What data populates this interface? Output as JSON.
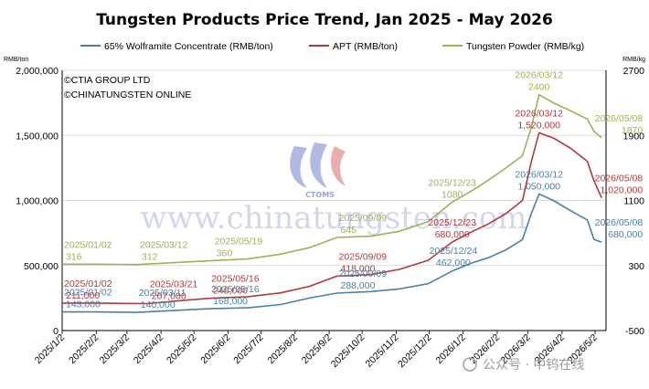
{
  "chart_data": {
    "type": "line",
    "title": "Tungsten Products Price Trend, Jan 2025 - May 2026",
    "left_axis": {
      "unit": "RMB/ton",
      "ylim": [
        0,
        2000000
      ],
      "ticks": [
        "0",
        "500,000",
        "1,000,000",
        "1,500,000",
        "2,000,000"
      ],
      "tick_values": [
        0,
        500000,
        1000000,
        1500000,
        2000000
      ]
    },
    "right_axis": {
      "unit": "RMB/kg",
      "ylim": [
        -500,
        2700
      ],
      "ticks": [
        "-500",
        "300",
        "1100",
        "1900",
        "2700"
      ],
      "tick_values": [
        -500,
        300,
        1100,
        1900,
        2700
      ]
    },
    "x_ticks": [
      "2025/1/2",
      "2025/2/2",
      "2025/3/2",
      "2025/4/2",
      "2025/5/2",
      "2025/6/2",
      "2025/7/2",
      "2025/8/2",
      "2025/9/2",
      "2025/10/2",
      "2025/11/2",
      "2025/12/2",
      "2026/1/2",
      "2026/2/2",
      "2026/3/2",
      "2026/4/2",
      "2026/5/2"
    ],
    "grid": "horizontal",
    "legend_position": "top",
    "series": [
      {
        "name": "65% Wolframite Concentrate (RMB/ton)",
        "color": "#4a7fa8",
        "axis": "left",
        "x": [
          "2025-01-02",
          "2025-02-01",
          "2025-03-11",
          "2025-04-15",
          "2025-05-16",
          "2025-06-20",
          "2025-07-20",
          "2025-08-15",
          "2025-09-09",
          "2025-10-10",
          "2025-11-05",
          "2025-12-01",
          "2025-12-24",
          "2026-01-10",
          "2026-01-25",
          "2026-02-10",
          "2026-02-25",
          "2026-03-05",
          "2026-03-12",
          "2026-03-25",
          "2026-04-10",
          "2026-04-25",
          "2026-05-01",
          "2026-05-08"
        ],
        "y": [
          143000,
          143000,
          140000,
          155000,
          168000,
          175000,
          200000,
          250000,
          288000,
          300000,
          320000,
          360000,
          462000,
          520000,
          560000,
          620000,
          700000,
          900000,
          1050000,
          1000000,
          920000,
          850000,
          700000,
          680000
        ]
      },
      {
        "name": "APT (RMB/ton)",
        "color": "#b03a3a",
        "axis": "left",
        "x": [
          "2025-01-02",
          "2025-02-01",
          "2025-03-21",
          "2025-04-20",
          "2025-05-16",
          "2025-06-20",
          "2025-07-20",
          "2025-08-15",
          "2025-09-09",
          "2025-10-10",
          "2025-11-05",
          "2025-12-01",
          "2025-12-23",
          "2026-01-10",
          "2026-01-25",
          "2026-02-10",
          "2026-02-25",
          "2026-03-05",
          "2026-03-12",
          "2026-03-25",
          "2026-04-10",
          "2026-04-25",
          "2026-05-01",
          "2026-05-08"
        ],
        "y": [
          211000,
          211000,
          207000,
          230000,
          248000,
          260000,
          290000,
          340000,
          418000,
          430000,
          470000,
          540000,
          680000,
          760000,
          820000,
          900000,
          1000000,
          1300000,
          1520000,
          1480000,
          1400000,
          1300000,
          1150000,
          1020000
        ]
      },
      {
        "name": "Tungsten Powder (RMB/kg)",
        "color": "#9bb354",
        "axis": "right",
        "x": [
          "2025-01-02",
          "2025-02-01",
          "2025-03-12",
          "2025-04-20",
          "2025-05-19",
          "2025-06-20",
          "2025-07-20",
          "2025-08-15",
          "2025-09-09",
          "2025-10-10",
          "2025-11-05",
          "2025-12-01",
          "2025-12-23",
          "2026-01-10",
          "2026-01-25",
          "2026-02-10",
          "2026-02-25",
          "2026-03-05",
          "2026-03-12",
          "2026-03-25",
          "2026-04-10",
          "2026-04-25",
          "2026-05-01",
          "2026-05-08"
        ],
        "y": [
          316,
          316,
          312,
          340,
          360,
          380,
          440,
          520,
          645,
          660,
          720,
          840,
          1080,
          1220,
          1350,
          1500,
          1650,
          2000,
          2400,
          2300,
          2200,
          2100,
          1950,
          1870
        ]
      }
    ],
    "annotations": [
      {
        "series": 2,
        "date": "2025-01-02",
        "label_date": "2025/01/02",
        "label_value": "316"
      },
      {
        "series": 2,
        "date": "2025-03-12",
        "label_date": "2025/03/12",
        "label_value": "312"
      },
      {
        "series": 2,
        "date": "2025-05-19",
        "label_date": "2025/05/19",
        "label_value": "360"
      },
      {
        "series": 2,
        "date": "2025-09-09",
        "label_date": "2025/09/09",
        "label_value": "645"
      },
      {
        "series": 2,
        "date": "2025-12-23",
        "label_date": "2025/12/23",
        "label_value": "1080"
      },
      {
        "series": 2,
        "date": "2026-03-12",
        "label_date": "2026/03/12",
        "label_value": "2400"
      },
      {
        "series": 2,
        "date": "2026-05-08",
        "label_date": "2026/05/08",
        "label_value": "1870"
      },
      {
        "series": 1,
        "date": "2025-01-02",
        "label_date": "2025/01/02",
        "label_value": "211,000"
      },
      {
        "series": 1,
        "date": "2025-03-21",
        "label_date": "2025/03/21",
        "label_value": "207,000"
      },
      {
        "series": 1,
        "date": "2025-05-16",
        "label_date": "2025/05/16",
        "label_value": "248,000"
      },
      {
        "series": 1,
        "date": "2025-09-09",
        "label_date": "2025/09/09",
        "label_value": "418,000"
      },
      {
        "series": 1,
        "date": "2025-12-23",
        "label_date": "2025/12/23",
        "label_value": "680,000"
      },
      {
        "series": 1,
        "date": "2026-03-12",
        "label_date": "2026/03/12",
        "label_value": "1,520,000"
      },
      {
        "series": 1,
        "date": "2026-05-08",
        "label_date": "2026/05/08",
        "label_value": "1,020,000"
      },
      {
        "series": 0,
        "date": "2025-01-02",
        "label_date": "2025/01/02",
        "label_value": "143,000"
      },
      {
        "series": 0,
        "date": "2025-03-11",
        "label_date": "2025/03/11",
        "label_value": "140,000"
      },
      {
        "series": 0,
        "date": "2025-05-16",
        "label_date": "2025/05/16",
        "label_value": "168,000"
      },
      {
        "series": 0,
        "date": "2025-09-09",
        "label_date": "2025/09/09",
        "label_value": "288,000"
      },
      {
        "series": 0,
        "date": "2025-12-24",
        "label_date": "2025/12/24",
        "label_value": "462,000"
      },
      {
        "series": 0,
        "date": "2026-03-12",
        "label_date": "2026/03/12",
        "label_value": "1,050,000"
      },
      {
        "series": 0,
        "date": "2026-05-08",
        "label_date": "2026/05/08",
        "label_value": "680,000"
      }
    ],
    "copyright": [
      "©CTIA GROUP LTD",
      "©CHINATUNGSTEN ONLINE"
    ],
    "watermark": "www.chinatungsten.com",
    "logo_text": "CTOMS",
    "source_mark": "公众号 · 中钨在线"
  }
}
